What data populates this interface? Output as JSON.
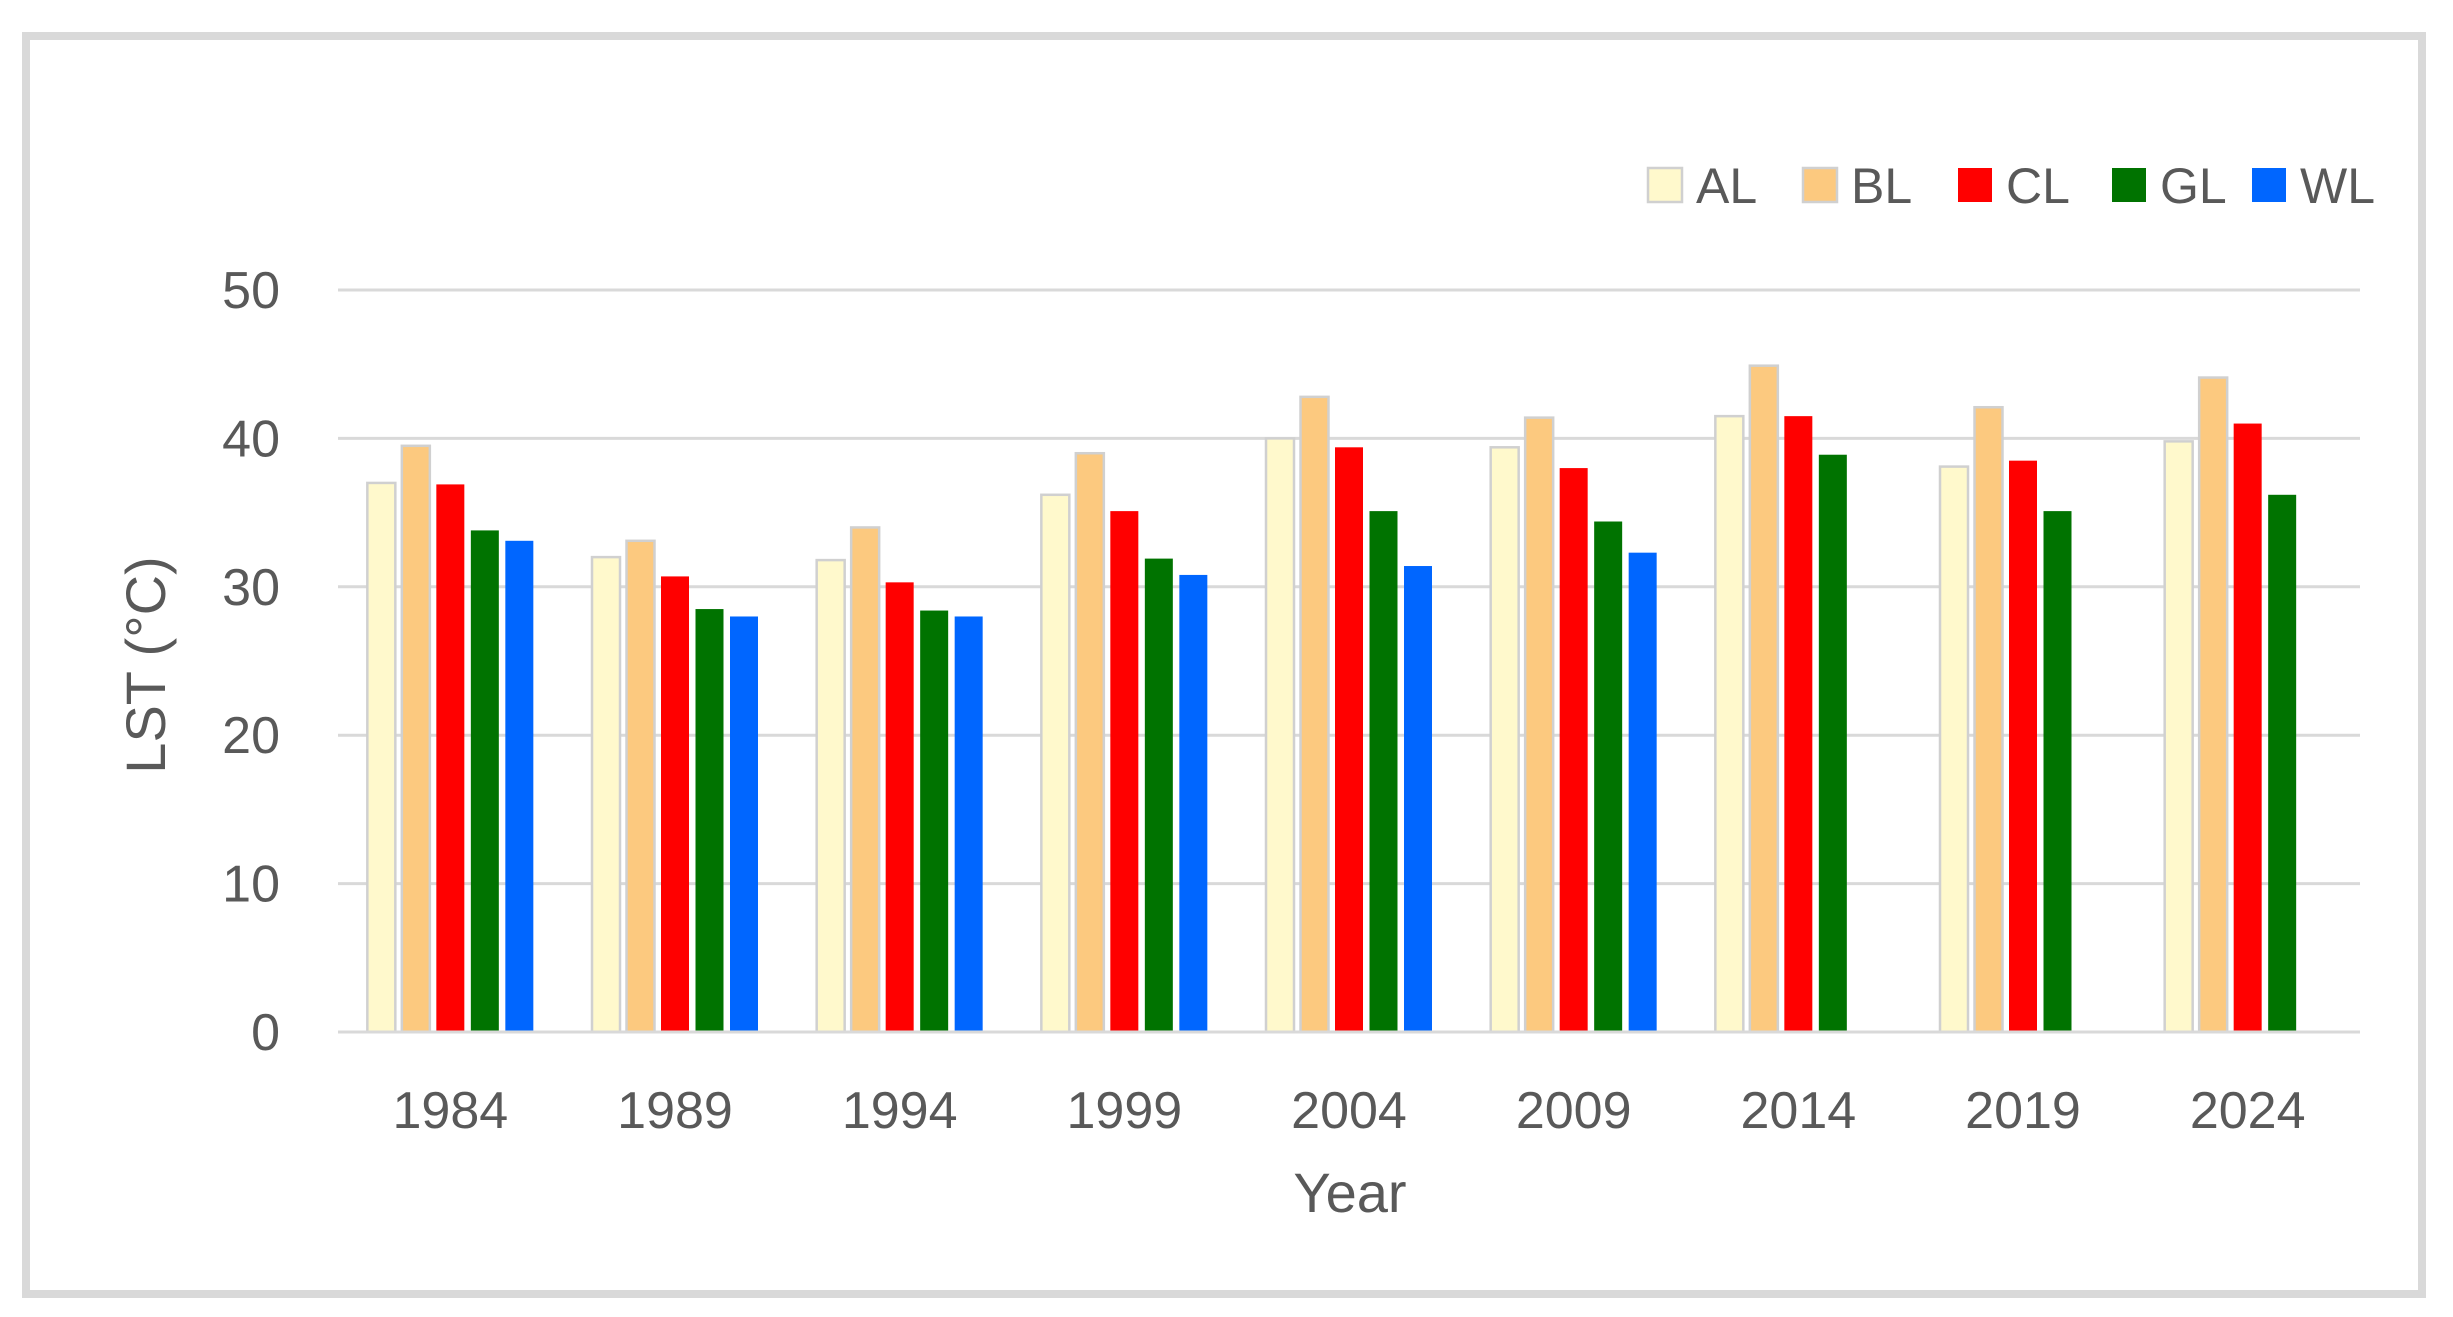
{
  "chart_data": {
    "type": "bar",
    "title": "",
    "xlabel": "Year",
    "ylabel": "LST (°C)",
    "ylim": [
      0,
      50
    ],
    "yticks": [
      "0",
      "10",
      "20",
      "30",
      "40",
      "50"
    ],
    "grid": "horizontal",
    "legend_position": "top-right",
    "categories": [
      "1984",
      "1989",
      "1994",
      "1999",
      "2004",
      "2009",
      "2014",
      "2019",
      "2024"
    ],
    "series": [
      {
        "name": "AL",
        "color": "#fff9cc",
        "values": [
          37.0,
          32.0,
          31.8,
          36.2,
          40.0,
          39.4,
          41.5,
          38.1,
          39.8
        ]
      },
      {
        "name": "BL",
        "color": "#fcc97f",
        "values": [
          39.5,
          33.1,
          34.0,
          39.0,
          42.8,
          41.4,
          44.9,
          42.1,
          44.1
        ]
      },
      {
        "name": "CL",
        "color": "#ff0000",
        "values": [
          36.9,
          30.7,
          30.3,
          35.1,
          39.4,
          38.0,
          41.5,
          38.5,
          41.0
        ]
      },
      {
        "name": "GL",
        "color": "#007300",
        "values": [
          33.8,
          28.5,
          28.4,
          31.9,
          35.1,
          34.4,
          38.9,
          35.1,
          36.2
        ]
      },
      {
        "name": "WL",
        "color": "#0066ff",
        "values": [
          33.1,
          28.0,
          28.0,
          30.8,
          31.4,
          32.3,
          null,
          null,
          null
        ]
      }
    ]
  }
}
